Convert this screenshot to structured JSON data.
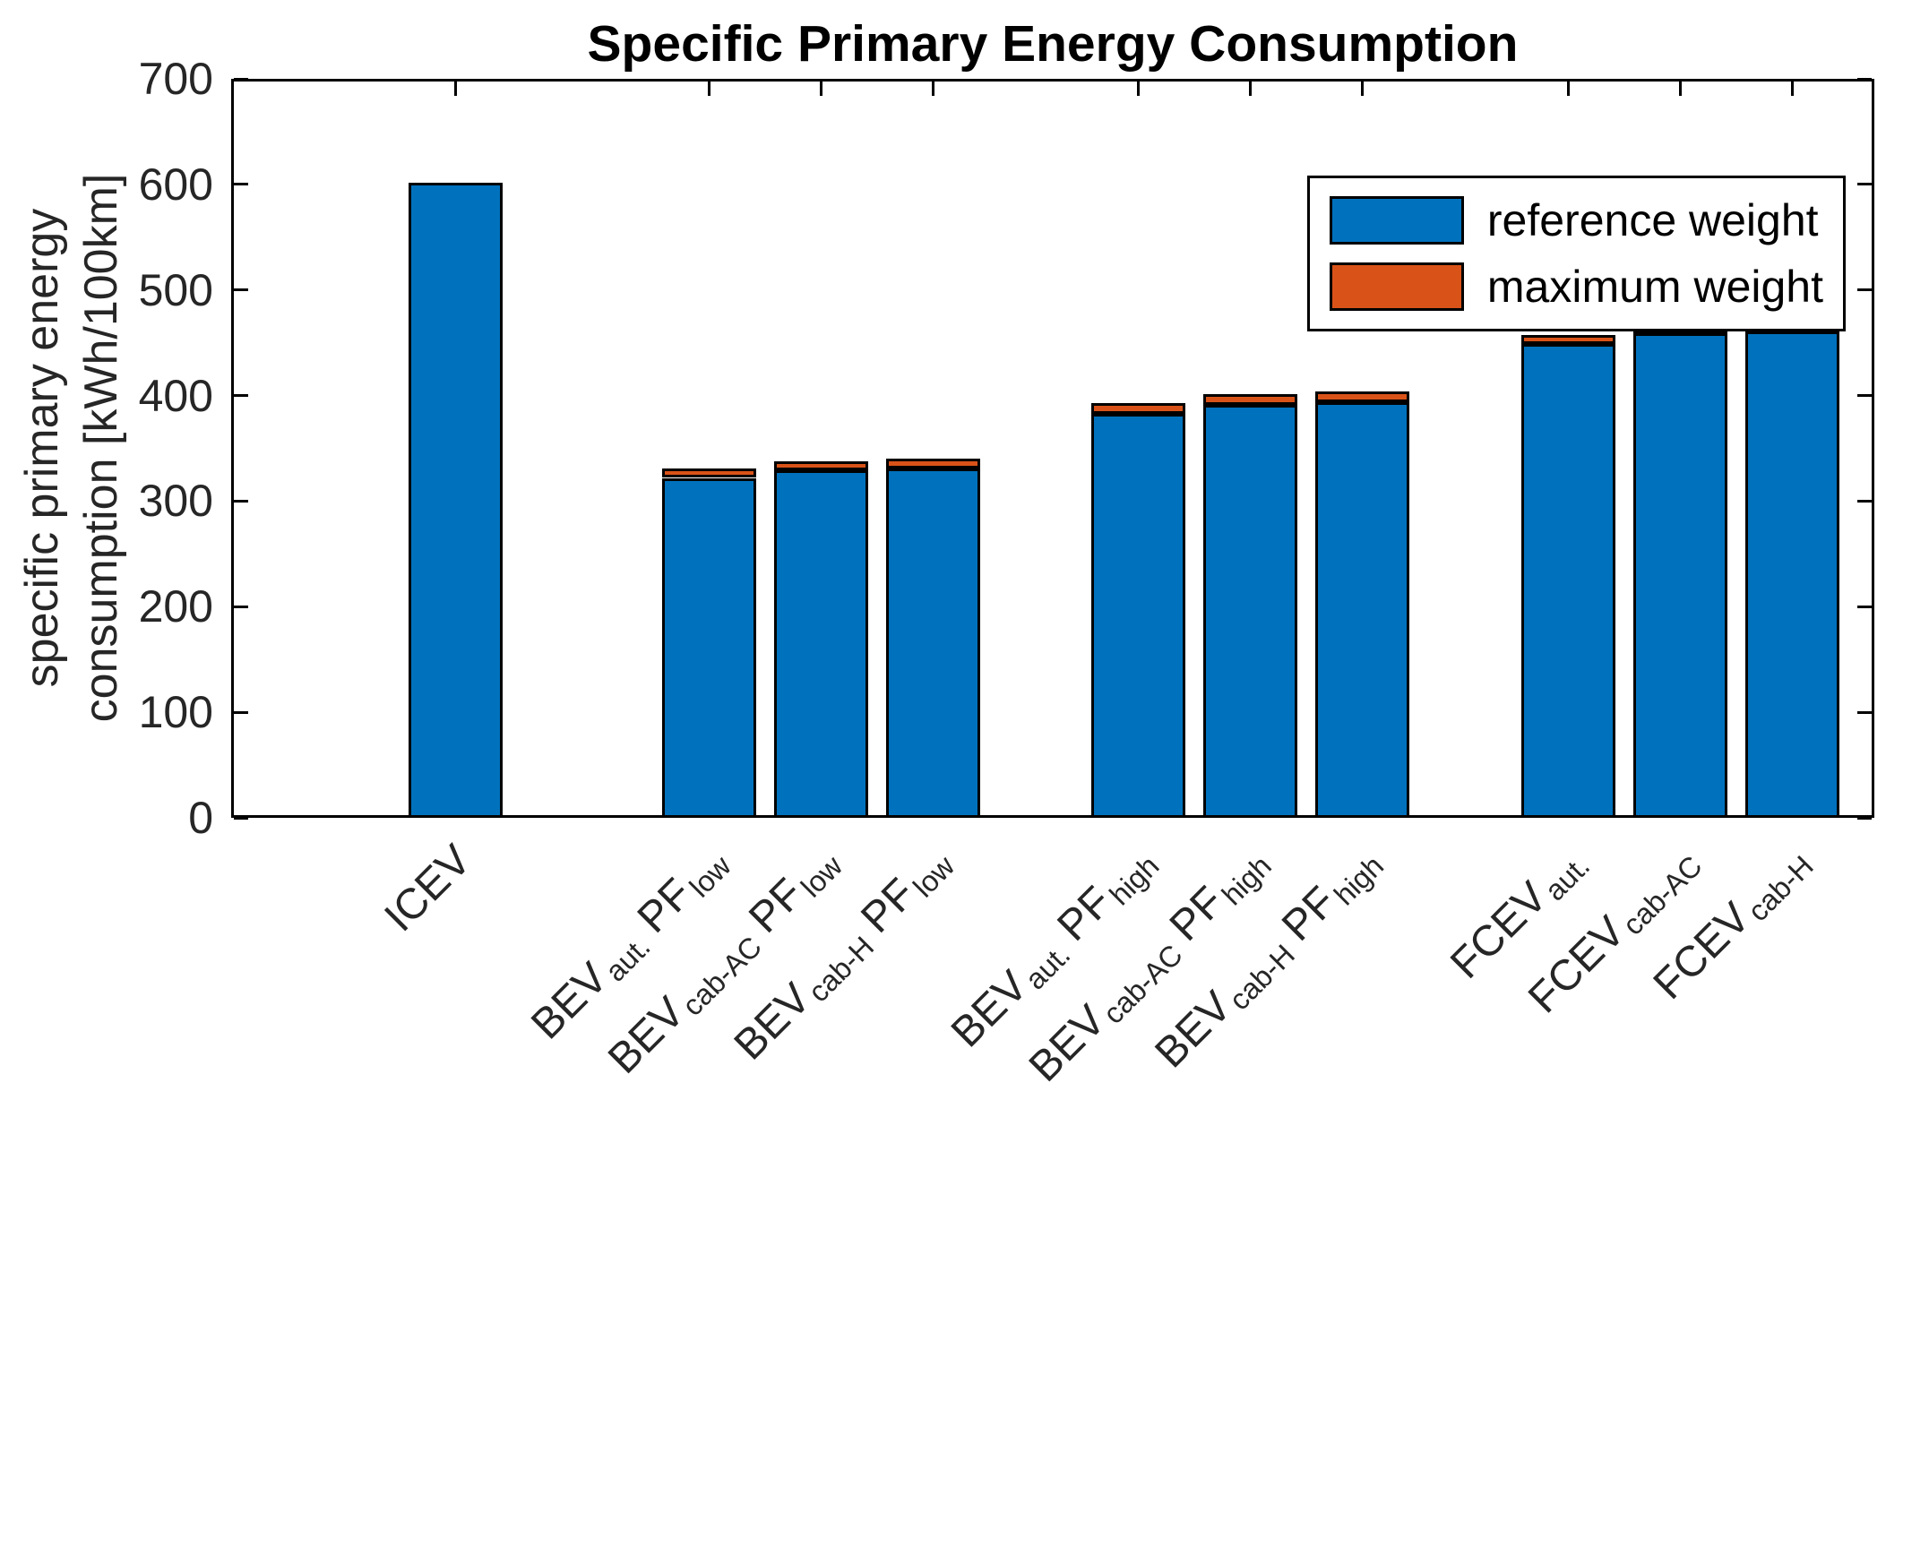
{
  "chart_data": {
    "type": "bar",
    "stacked": true,
    "title": "Specific Primary Energy Consumption",
    "ylabel_lines": [
      "specific primary energy",
      "consumption [kWh/100km]"
    ],
    "ylim": [
      0,
      700
    ],
    "yticks": [
      0,
      100,
      200,
      300,
      400,
      500,
      600,
      700
    ],
    "xlim": [
      0,
      11
    ],
    "x": [
      1.5,
      3.2,
      3.95,
      4.7,
      6.07,
      6.82,
      7.57,
      8.95,
      9.7,
      10.45
    ],
    "bar_width": 0.63,
    "grid": false,
    "bar_edge_color": "#000000",
    "categories": [
      [
        {
          "t": "ICEV"
        }
      ],
      [
        {
          "t": "BEV"
        },
        {
          "t": "aut.",
          "sub": true
        },
        {
          "t": " PF"
        },
        {
          "t": "low",
          "sub": true
        }
      ],
      [
        {
          "t": "BEV"
        },
        {
          "t": "cab-AC",
          "sub": true
        },
        {
          "t": " PF"
        },
        {
          "t": "low",
          "sub": true
        }
      ],
      [
        {
          "t": "BEV"
        },
        {
          "t": "cab-H",
          "sub": true
        },
        {
          "t": " PF"
        },
        {
          "t": "low",
          "sub": true
        }
      ],
      [
        {
          "t": "BEV"
        },
        {
          "t": "aut.",
          "sub": true
        },
        {
          "t": " PF"
        },
        {
          "t": "high",
          "sub": true
        }
      ],
      [
        {
          "t": "BEV"
        },
        {
          "t": "cab-AC",
          "sub": true
        },
        {
          "t": " PF"
        },
        {
          "t": "high",
          "sub": true
        }
      ],
      [
        {
          "t": "BEV"
        },
        {
          "t": "cab-H",
          "sub": true
        },
        {
          "t": " PF"
        },
        {
          "t": "high",
          "sub": true
        }
      ],
      [
        {
          "t": "FCEV"
        },
        {
          "t": "aut.",
          "sub": true
        }
      ],
      [
        {
          "t": "FCEV"
        },
        {
          "t": "cab-AC",
          "sub": true
        }
      ],
      [
        {
          "t": "FCEV"
        },
        {
          "t": "cab-H",
          "sub": true
        }
      ]
    ],
    "series": [
      {
        "name": "reference weight",
        "color": "#0072BD",
        "values": [
          602,
          322,
          329,
          331,
          383,
          391,
          394,
          449,
          459,
          461
        ]
      },
      {
        "name": "maximum weight",
        "color": "#D95319",
        "totals": [
          602,
          331,
          338,
          340,
          393,
          401,
          404,
          457,
          467,
          468
        ]
      }
    ],
    "legend": {
      "position": "northeast",
      "items": [
        "reference weight",
        "maximum weight"
      ]
    }
  }
}
